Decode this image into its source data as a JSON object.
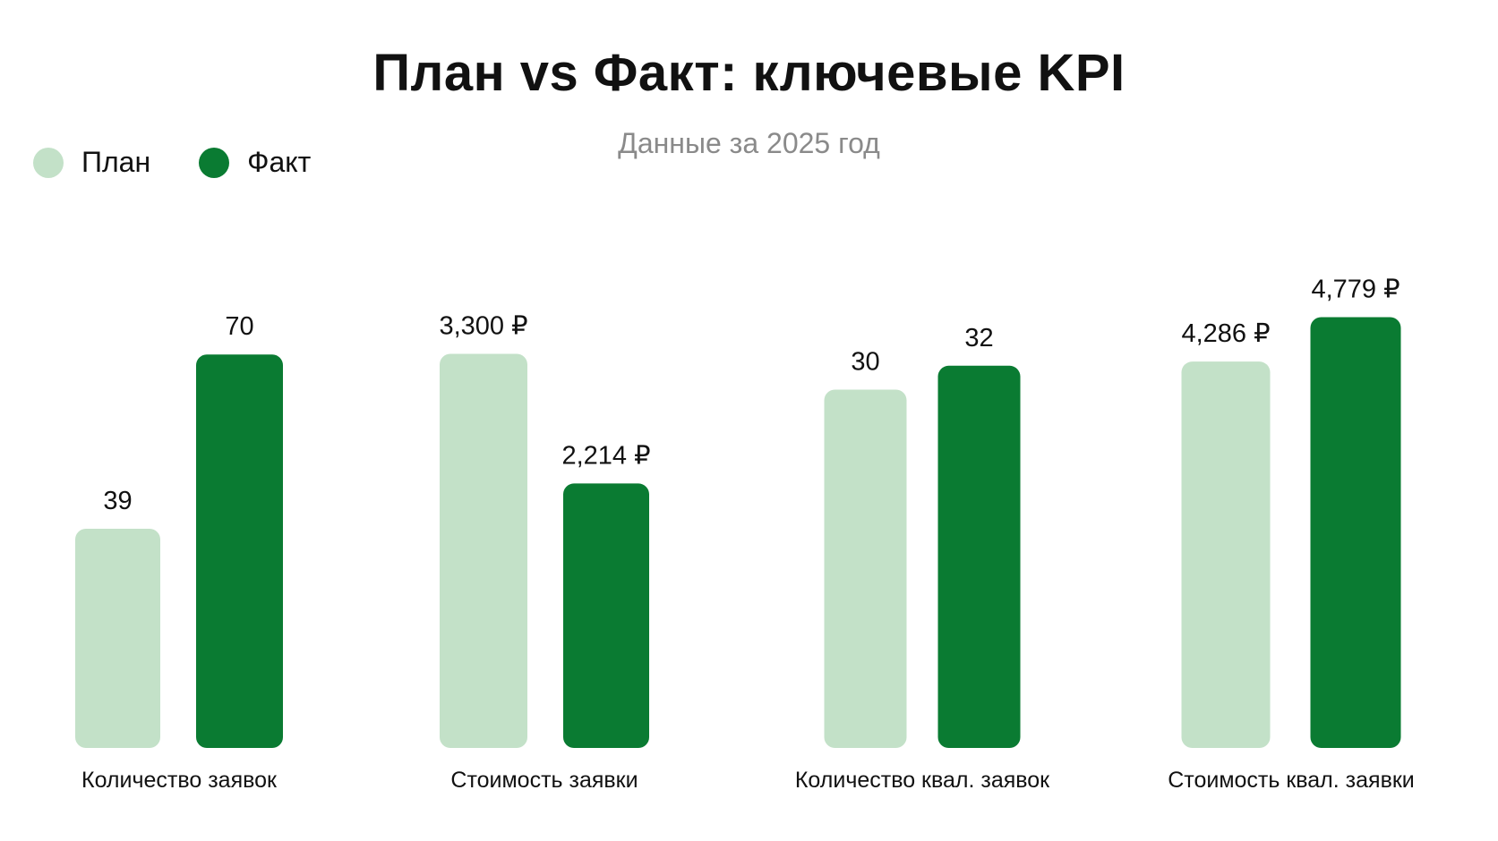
{
  "chart_data": {
    "type": "bar",
    "title": "План vs Факт: ключевые KPI",
    "subtitle": "Данные за 2025 год",
    "categories": [
      "Количество заявок",
      "Стоимость заявки",
      "Количество квал. заявок",
      "Стоимость квал. заявки"
    ],
    "series": [
      {
        "name": "План",
        "color": "#c3e1c8",
        "values": [
          39,
          3300,
          30,
          4286
        ],
        "labels": [
          "39",
          "3,300 ₽",
          "30",
          "4,286 ₽"
        ]
      },
      {
        "name": "Факт",
        "color": "#0a7b32",
        "values": [
          70,
          2214,
          32,
          4779
        ],
        "labels": [
          "70",
          "2,214 ₽",
          "32",
          "4,779 ₽"
        ]
      }
    ],
    "ylim_per_category": [
      [
        0,
        85
      ],
      [
        0,
        4000
      ],
      [
        0,
        40
      ],
      [
        0,
        5300
      ]
    ],
    "legend": "top-left",
    "grid": false
  }
}
